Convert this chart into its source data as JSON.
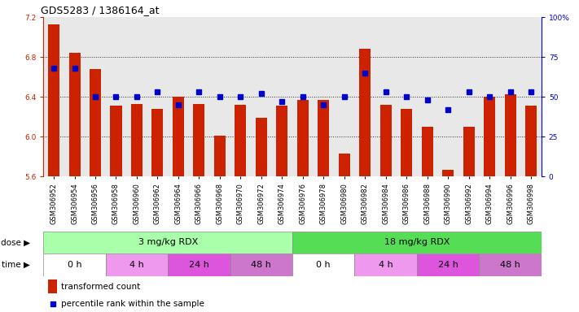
{
  "title": "GDS5283 / 1386164_at",
  "samples": [
    "GSM306952",
    "GSM306954",
    "GSM306956",
    "GSM306958",
    "GSM306960",
    "GSM306962",
    "GSM306964",
    "GSM306966",
    "GSM306968",
    "GSM306970",
    "GSM306972",
    "GSM306974",
    "GSM306976",
    "GSM306978",
    "GSM306980",
    "GSM306982",
    "GSM306984",
    "GSM306986",
    "GSM306988",
    "GSM306990",
    "GSM306992",
    "GSM306994",
    "GSM306996",
    "GSM306998"
  ],
  "bar_values": [
    7.13,
    6.84,
    6.68,
    6.31,
    6.33,
    6.28,
    6.4,
    6.33,
    6.01,
    6.32,
    6.19,
    6.31,
    6.37,
    6.37,
    5.83,
    6.88,
    6.32,
    6.28,
    6.1,
    5.67,
    6.1,
    6.4,
    6.43,
    6.31
  ],
  "dot_values": [
    68,
    68,
    50,
    50,
    50,
    53,
    45,
    53,
    50,
    50,
    52,
    47,
    50,
    45,
    50,
    65,
    53,
    50,
    48,
    42,
    53,
    50,
    53,
    53
  ],
  "ylim_left": [
    5.6,
    7.2
  ],
  "ylim_right": [
    0,
    100
  ],
  "yticks_left": [
    5.6,
    6.0,
    6.4,
    6.8,
    7.2
  ],
  "yticks_right": [
    0,
    25,
    50,
    75,
    100
  ],
  "bar_color": "#cc2200",
  "dot_color": "#0000cc",
  "dose_groups": [
    {
      "label": "3 mg/kg RDX",
      "start": 0,
      "end": 12,
      "color": "#aaffaa"
    },
    {
      "label": "18 mg/kg RDX",
      "start": 12,
      "end": 24,
      "color": "#55dd55"
    }
  ],
  "time_colors": {
    "0 h": "#ffffff",
    "4 h": "#ee99ee",
    "24 h": "#dd55dd",
    "48 h": "#cc77cc"
  },
  "time_groups": [
    {
      "label": "0 h",
      "start": 0,
      "end": 3
    },
    {
      "label": "4 h",
      "start": 3,
      "end": 6
    },
    {
      "label": "24 h",
      "start": 6,
      "end": 9
    },
    {
      "label": "48 h",
      "start": 9,
      "end": 12
    },
    {
      "label": "0 h",
      "start": 12,
      "end": 15
    },
    {
      "label": "4 h",
      "start": 15,
      "end": 18
    },
    {
      "label": "24 h",
      "start": 18,
      "end": 21
    },
    {
      "label": "48 h",
      "start": 21,
      "end": 24
    }
  ],
  "legend_bar_label": "transformed count",
  "legend_dot_label": "percentile rank within the sample",
  "dose_label": "dose",
  "time_label": "time",
  "chart_bg": "#e8e8e8",
  "fig_bg": "#ffffff",
  "grid_lines": [
    6.0,
    6.4,
    6.8
  ],
  "title_fontsize": 9,
  "axis_fontsize": 7.5,
  "tick_fontsize": 6.5,
  "bar_width": 0.55
}
